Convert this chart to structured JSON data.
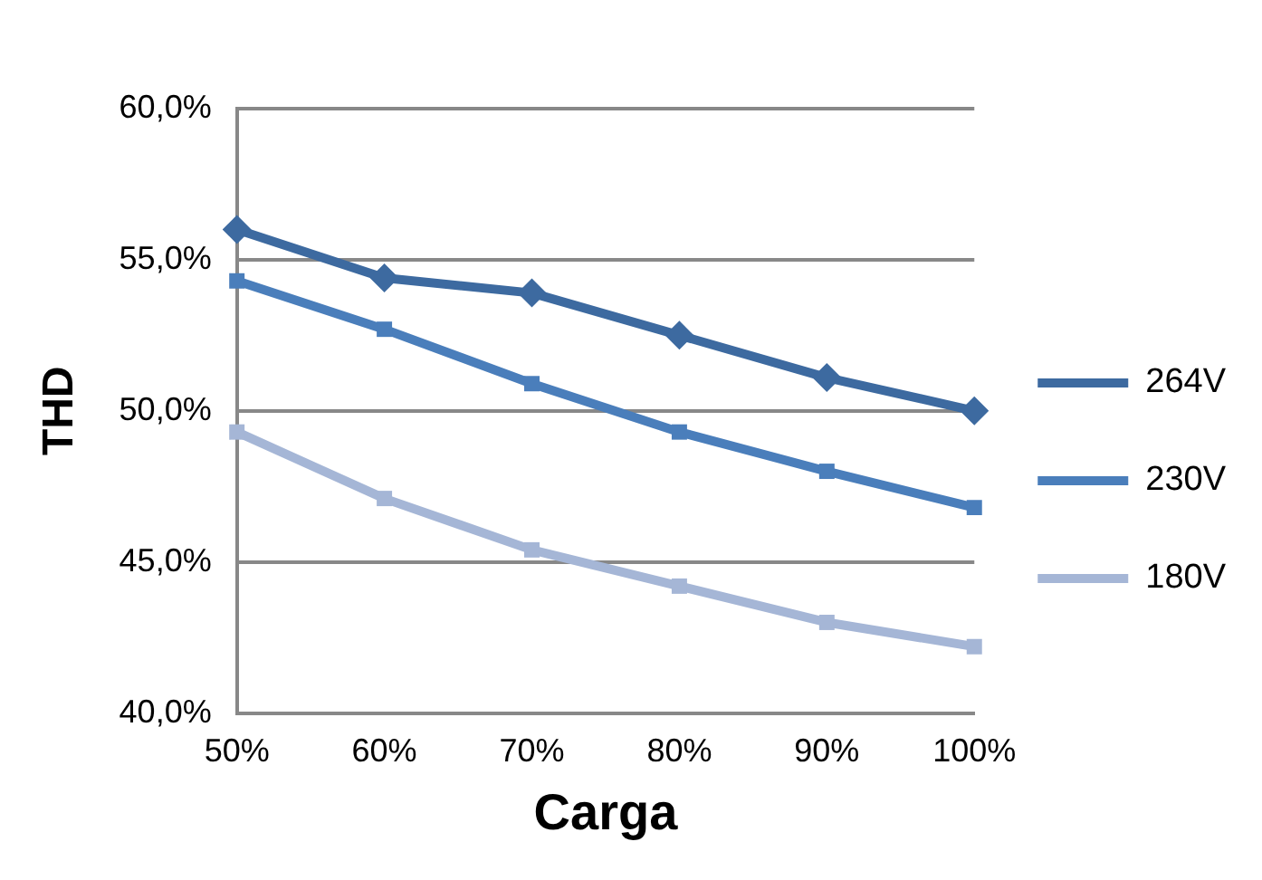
{
  "chart_data": {
    "type": "line",
    "xlabel": "Carga",
    "ylabel": "THD",
    "categories": [
      "50%",
      "60%",
      "70%",
      "80%",
      "90%",
      "100%"
    ],
    "series": [
      {
        "name": "264V",
        "color": "#3d6aa0",
        "marker": "diamond",
        "values": [
          56.0,
          54.4,
          53.9,
          52.5,
          51.1,
          50.0
        ]
      },
      {
        "name": "230V",
        "color": "#4a7ebb",
        "marker": "square",
        "values": [
          54.3,
          52.7,
          50.9,
          49.3,
          48.0,
          46.8
        ]
      },
      {
        "name": "180V",
        "color": "#a5b6d6",
        "marker": "square",
        "values": [
          49.3,
          47.1,
          45.4,
          44.2,
          43.0,
          42.2
        ]
      }
    ],
    "ylim": [
      40,
      60
    ],
    "yticks": [
      {
        "value": 40,
        "label": "40,0%"
      },
      {
        "value": 45,
        "label": "45,0%"
      },
      {
        "value": 50,
        "label": "50,0%"
      },
      {
        "value": 55,
        "label": "55,0%"
      },
      {
        "value": 60,
        "label": "60,0%"
      }
    ],
    "grid": "y",
    "legend": "right",
    "line_style": "solid"
  }
}
